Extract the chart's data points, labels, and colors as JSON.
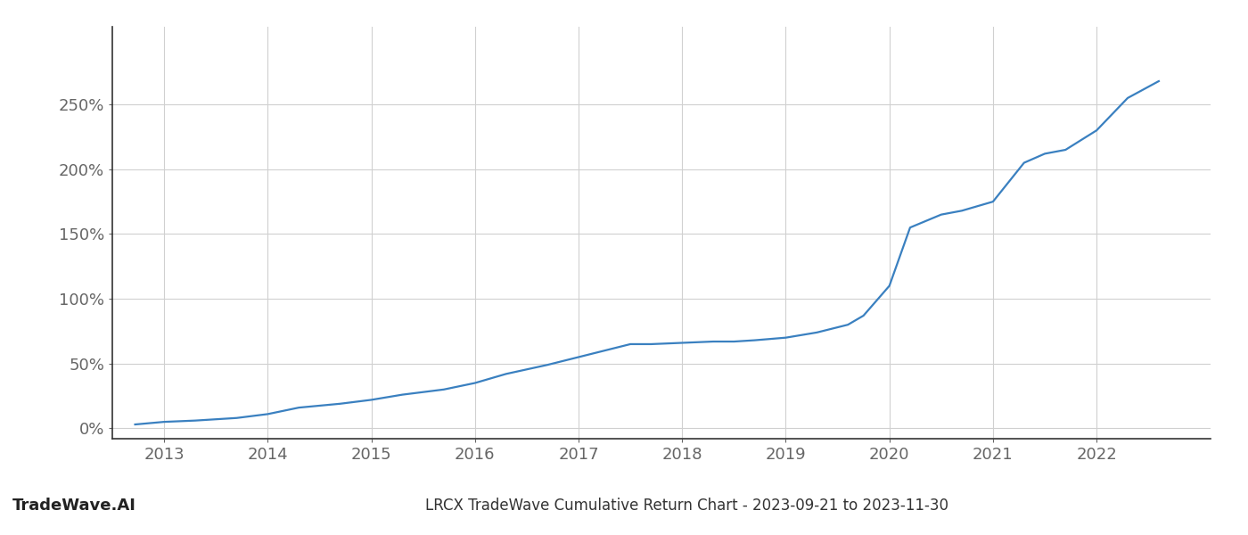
{
  "title": "LRCX TradeWave Cumulative Return Chart - 2023-09-21 to 2023-11-30",
  "watermark": "TradeWave.AI",
  "line_color": "#3a80c0",
  "background_color": "#ffffff",
  "grid_color": "#d0d0d0",
  "x_years": [
    2012.72,
    2013.0,
    2013.3,
    2013.7,
    2014.0,
    2014.3,
    2014.7,
    2015.0,
    2015.3,
    2015.7,
    2016.0,
    2016.3,
    2016.7,
    2017.0,
    2017.3,
    2017.5,
    2017.7,
    2018.0,
    2018.3,
    2018.5,
    2018.7,
    2019.0,
    2019.3,
    2019.6,
    2019.75,
    2020.0,
    2020.2,
    2020.5,
    2020.7,
    2021.0,
    2021.3,
    2021.5,
    2021.7,
    2022.0,
    2022.3,
    2022.6
  ],
  "y_values": [
    3,
    5,
    6,
    8,
    11,
    16,
    19,
    22,
    26,
    30,
    35,
    42,
    49,
    55,
    61,
    65,
    65,
    66,
    67,
    67,
    68,
    70,
    74,
    80,
    87,
    110,
    155,
    165,
    168,
    175,
    205,
    212,
    215,
    230,
    255,
    268
  ],
  "ylim": [
    -8,
    310
  ],
  "xlim": [
    2012.5,
    2023.1
  ],
  "yticks": [
    0,
    50,
    100,
    150,
    200,
    250
  ],
  "xticks": [
    2013,
    2014,
    2015,
    2016,
    2017,
    2018,
    2019,
    2020,
    2021,
    2022
  ],
  "tick_fontsize": 13,
  "title_fontsize": 12,
  "watermark_fontsize": 13,
  "line_width": 1.6
}
